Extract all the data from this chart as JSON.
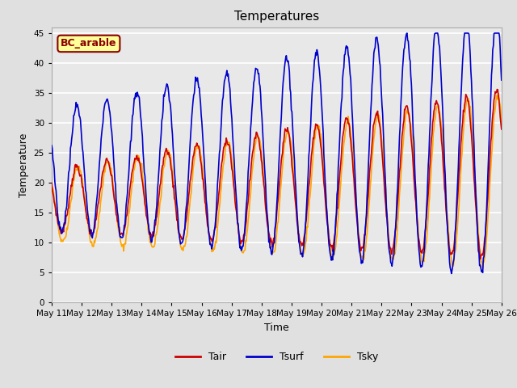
{
  "title": "Temperatures",
  "xlabel": "Time",
  "ylabel": "Temperature",
  "annotation": "BC_arable",
  "ylim": [
    0,
    46
  ],
  "yticks": [
    0,
    5,
    10,
    15,
    20,
    25,
    30,
    35,
    40,
    45
  ],
  "x_start_day": 11,
  "x_end_day": 26,
  "x_tick_days": [
    11,
    12,
    13,
    14,
    15,
    16,
    17,
    18,
    19,
    20,
    21,
    22,
    23,
    24,
    25,
    26
  ],
  "line_colors": {
    "Tair": "#cc0000",
    "Tsurf": "#0000cc",
    "Tsky": "#ffa500"
  },
  "line_widths": {
    "Tair": 1.2,
    "Tsurf": 1.2,
    "Tsky": 1.2
  },
  "fig_bg_color": "#e0e0e0",
  "plot_bg_color": "#e8e8e8",
  "grid_color": "#ffffff",
  "annotation_bg": "#ffff99",
  "annotation_border": "#8B0000",
  "annotation_text_color": "#8B0000",
  "title_fontsize": 11,
  "label_fontsize": 9,
  "tick_fontsize": 7.5,
  "legend_fontsize": 9
}
